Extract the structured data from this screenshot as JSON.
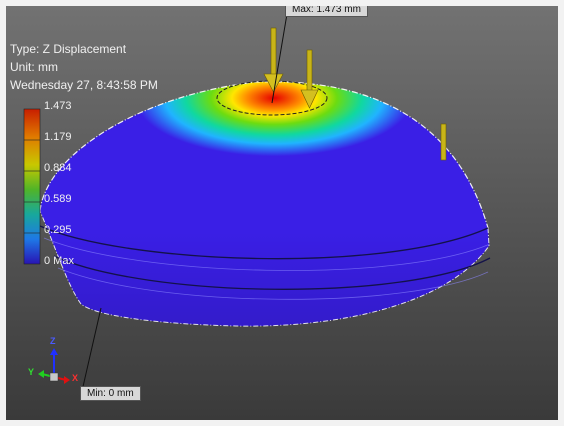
{
  "legend": {
    "type_line": "Type: Z Displacement",
    "unit_line": "Unit: mm",
    "date_line": "Wednesday 27, 8:43:58 PM",
    "ticks": [
      "1.473",
      "1.179",
      "0.884",
      "0.589",
      "0.295",
      "0 Max"
    ]
  },
  "markers": {
    "max_label": "Max: 1.473 mm",
    "min_label": "Min: 0 mm"
  },
  "triad": {
    "z_axis": "Z",
    "y_axis": "Y",
    "x_axis": "X"
  },
  "colors": {
    "background_top": "#707070",
    "background_bottom": "#3a3a3a",
    "contour_low": "#3a1fe6",
    "contour_high": "#e00000",
    "load_arrow": "#c8b418"
  },
  "icons": [
    "load-arrow-icon",
    "coordinate-triad-icon"
  ]
}
